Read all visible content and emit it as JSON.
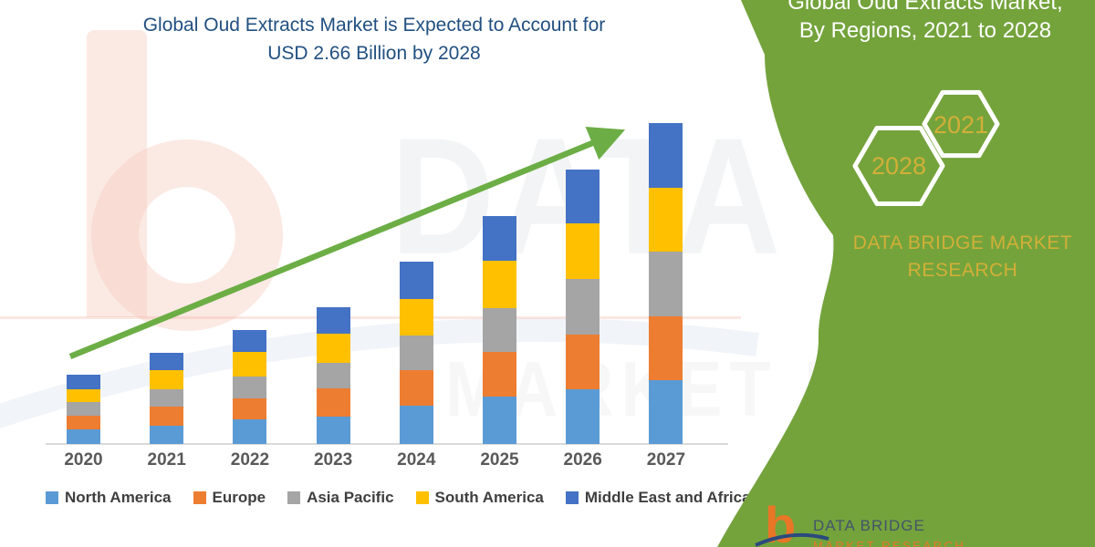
{
  "page_title": {
    "line1": "Global Oud Extracts Market is Expected to Account for",
    "line2": "USD 2.66 Billion by 2028"
  },
  "chart_data": {
    "type": "bar",
    "stacked": true,
    "title": "Global Oud Extracts Market is Expected to Account for USD 2.66 Billion by 2028",
    "categories": [
      "2020",
      "2021",
      "2022",
      "2023",
      "2024",
      "2025",
      "2026",
      "2027"
    ],
    "series": [
      {
        "name": "North America",
        "color": "#5B9BD5",
        "values": [
          16,
          20,
          27,
          30,
          42,
          52,
          60,
          70
        ]
      },
      {
        "name": "Europe",
        "color": "#ED7D31",
        "values": [
          15,
          21,
          23,
          31,
          39,
          49,
          60,
          70
        ]
      },
      {
        "name": "Asia Pacific",
        "color": "#A5A5A5",
        "values": [
          15,
          19,
          24,
          28,
          38,
          48,
          61,
          71
        ]
      },
      {
        "name": "South America",
        "color": "#FFC000",
        "values": [
          14,
          21,
          27,
          32,
          40,
          52,
          61,
          70
        ]
      },
      {
        "name": "Middle East and Africa",
        "color": "#4472C4",
        "values": [
          16,
          19,
          24,
          29,
          41,
          49,
          59,
          71
        ]
      }
    ],
    "xlabel": "",
    "ylabel": "",
    "y_axis": "not shown - values are estimated relative units (pixel heights)",
    "legend_position": "bottom",
    "grid": false,
    "annotations": [
      "green upward trend arrow from 2020 to 2027"
    ]
  },
  "sidebar": {
    "title_line1": "Global Oud Extracts Market,",
    "title_line2": "By Regions, 2021 to 2028",
    "hexagon_left": "2028",
    "hexagon_right": "2021",
    "brand_line1": "DATA BRIDGE MARKET",
    "brand_line2": "RESEARCH"
  },
  "logo": {
    "letter": "b",
    "name_text": "DATA BRIDGE",
    "sub_text": "MARKET RESEARCH"
  },
  "watermark": {
    "line1": "DATA BRIDGE",
    "line2": "MARKET RESEARCH"
  },
  "colors": {
    "title_text": "#215081",
    "sidebar_green": "#74A33C",
    "gold": "#D2AF37",
    "arrow_green": "#6CAE45",
    "axis_line": "#D9D9D9",
    "axis_label": "#595959",
    "legend_text": "#3F3F3F",
    "logo_orange": "#E97626",
    "logo_navy": "#2B4A7D"
  }
}
